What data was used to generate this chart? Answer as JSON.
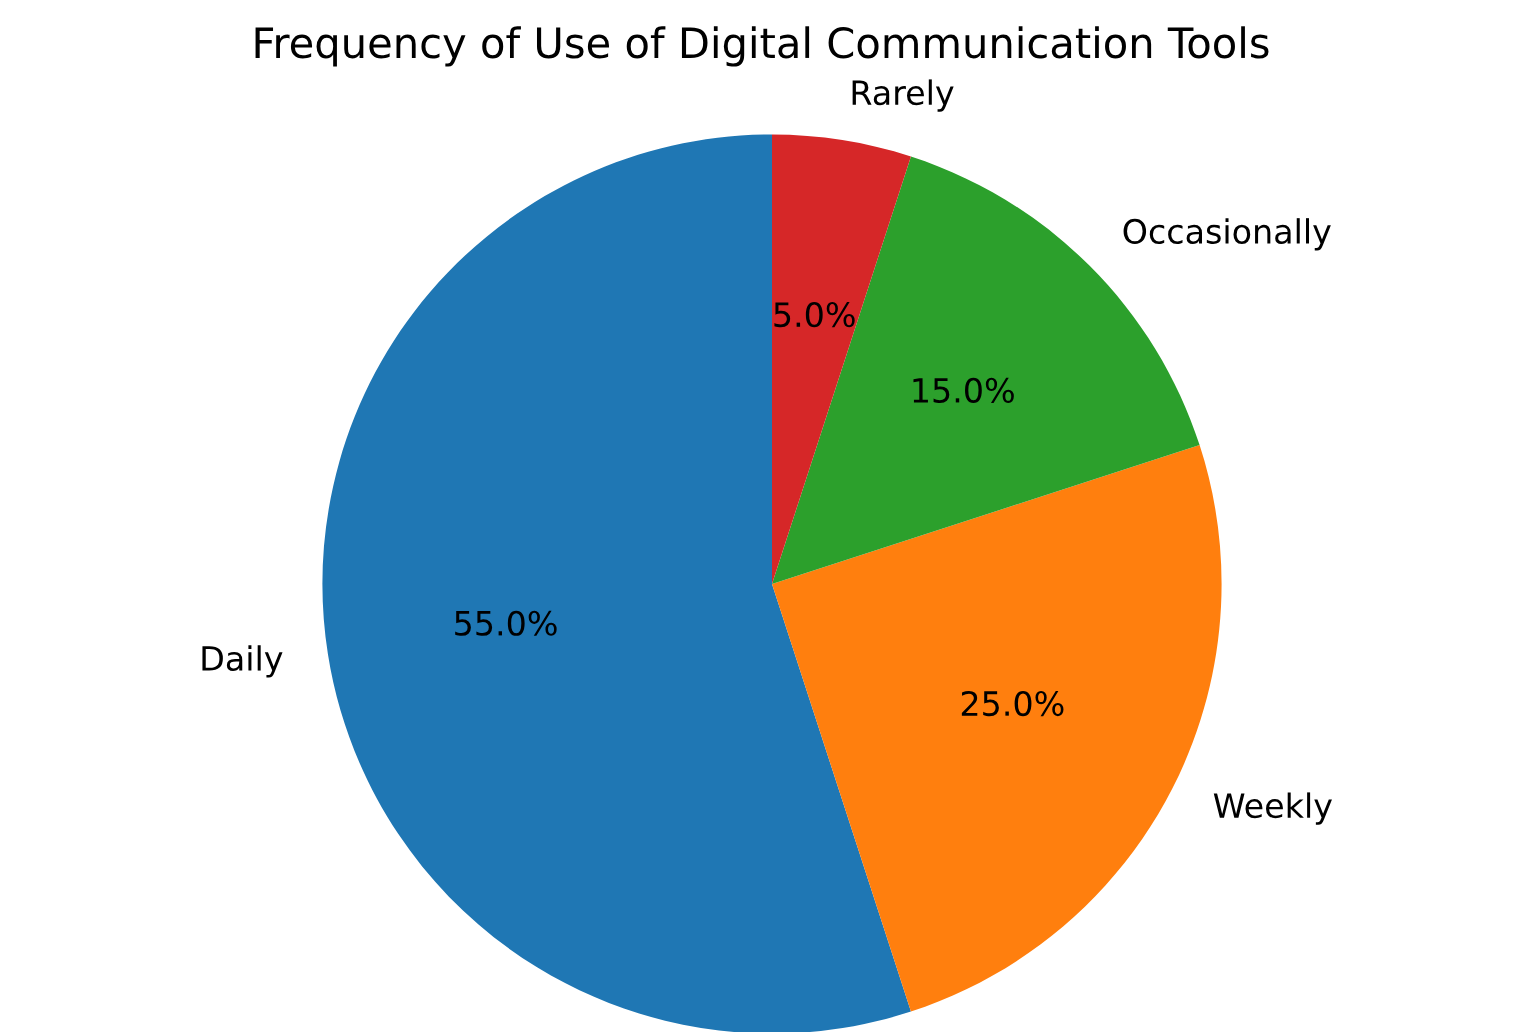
{
  "chart_data": {
    "type": "pie",
    "title": "Frequency of Use of Digital Communication Tools",
    "categories": [
      "Daily",
      "Weekly",
      "Occasionally",
      "Rarely"
    ],
    "values": [
      55,
      25,
      15,
      5
    ],
    "colors": [
      "#1f77b4",
      "#ff7f0e",
      "#2ca02c",
      "#d62728"
    ],
    "value_labels": [
      "55.0%",
      "25.0%",
      "15.0%",
      "5.0%"
    ]
  }
}
